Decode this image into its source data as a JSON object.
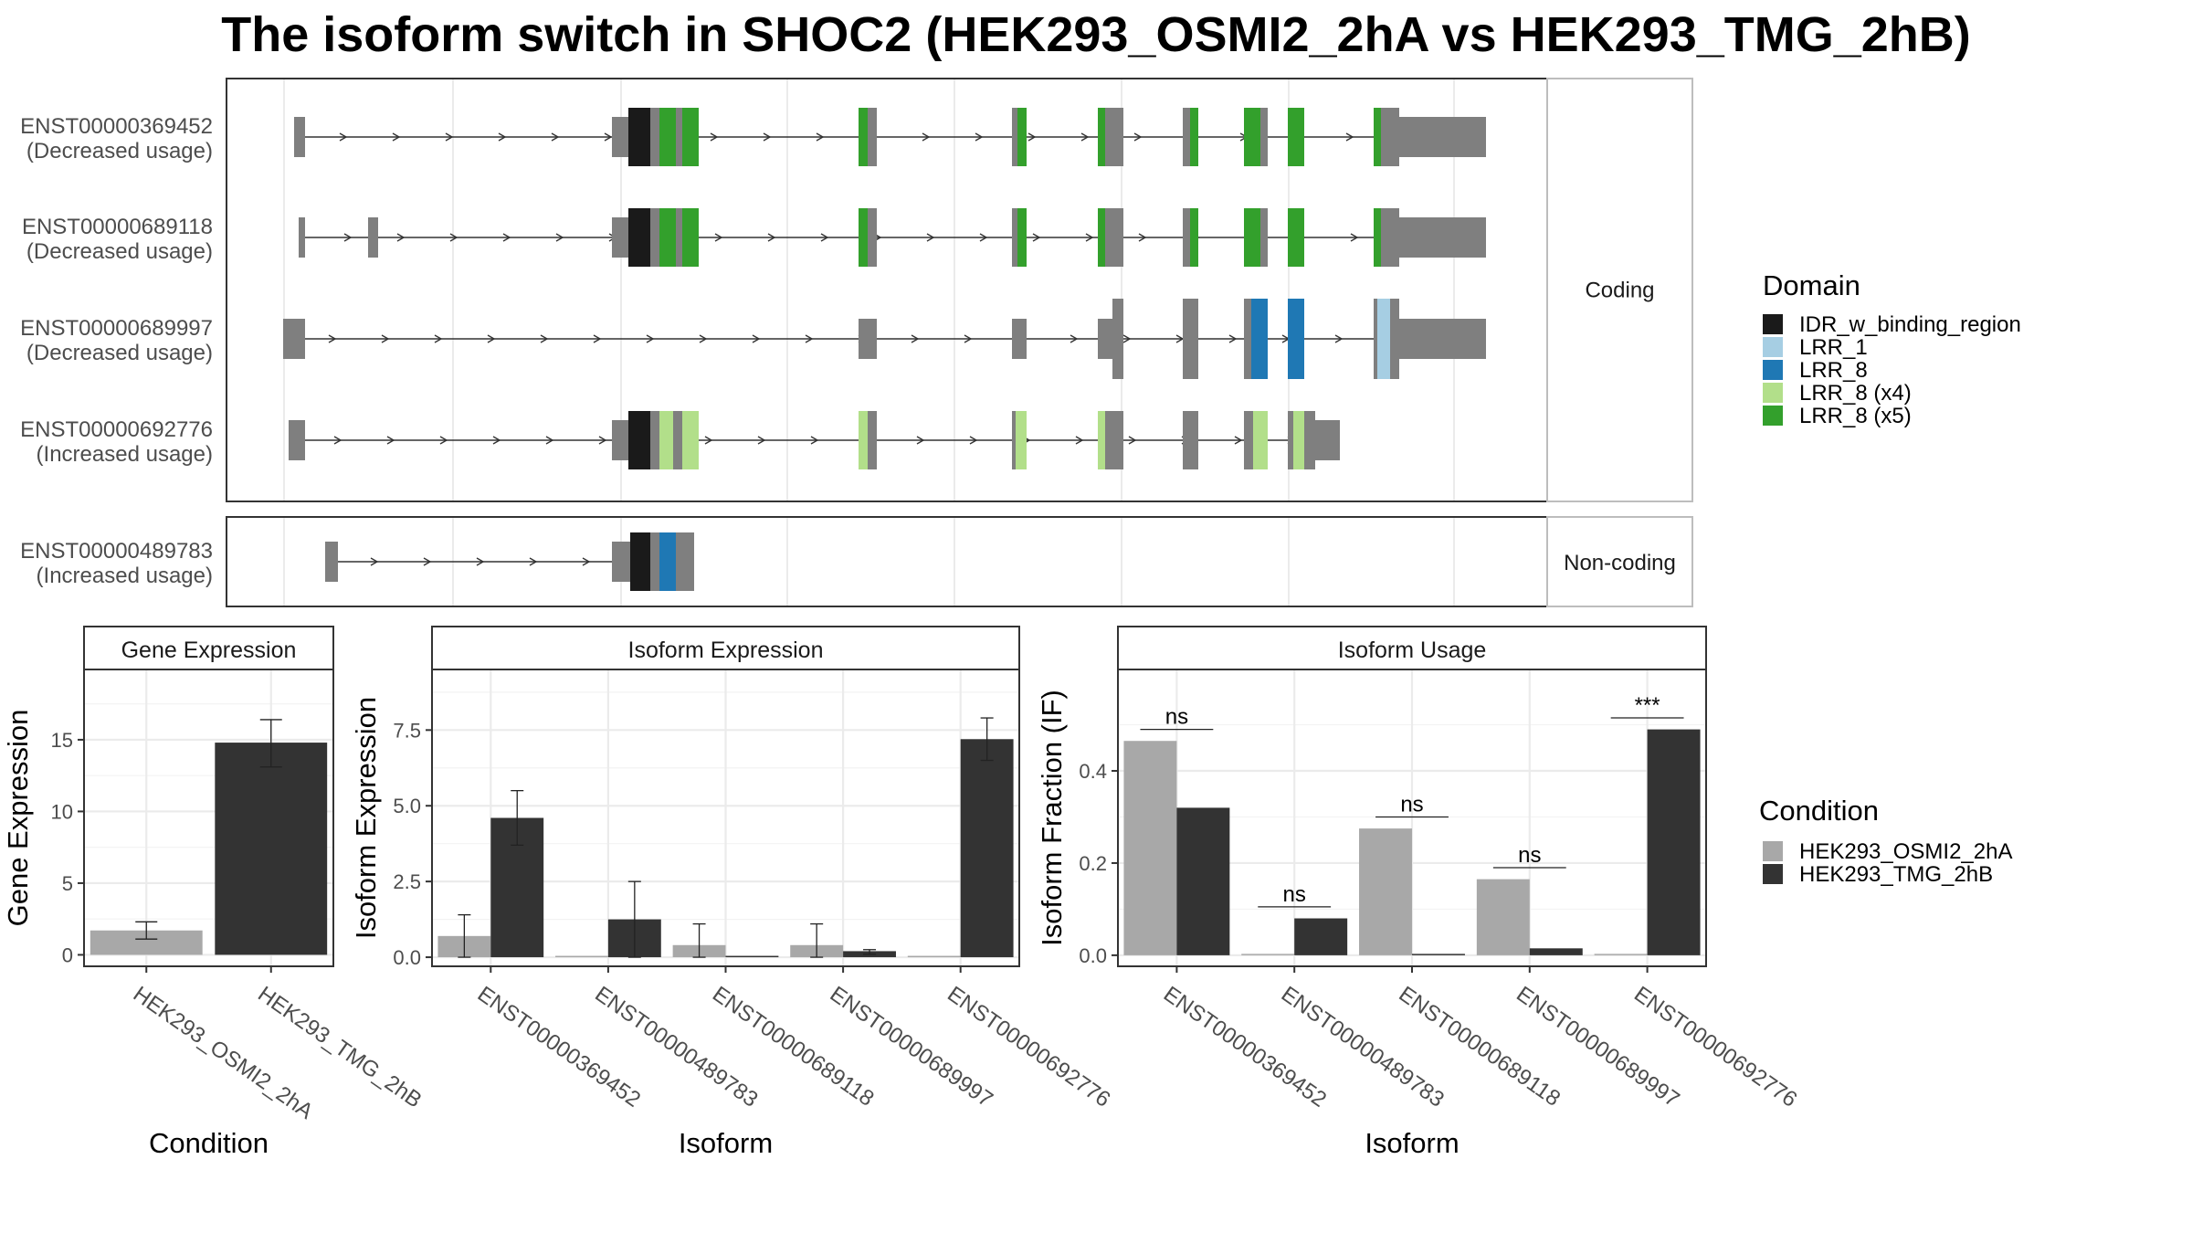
{
  "figure": {
    "title": "The isoform switch in SHOC2 (HEK293_OSMI2_2hA vs HEK293_TMG_2hB)"
  },
  "colors": {
    "domain_IDR_w_binding_region": "#1a1a1a",
    "domain_LRR_1": "#a6cee3",
    "domain_LRR_8": "#1f78b4",
    "domain_LRR_8_x4": "#b2df8a",
    "domain_LRR_8_x5": "#33a02c",
    "exon": "#7f7f7f",
    "cond_A": "#a8a8a8",
    "cond_B": "#333333"
  },
  "legend_domain": {
    "title": "Domain",
    "items": [
      "IDR_w_binding_region",
      "LRR_1",
      "LRR_8",
      "LRR_8 (x4)",
      "LRR_8 (x5)"
    ]
  },
  "legend_condition": {
    "title": "Condition",
    "items": [
      "HEK293_OSMI2_2hA",
      "HEK293_TMG_2hB"
    ]
  },
  "transcripts": {
    "coding_strip": "Coding",
    "noncoding_strip": "Non-coding",
    "coding": [
      {
        "id": "ENST00000369452",
        "note": "(Decreased usage)"
      },
      {
        "id": "ENST00000689118",
        "note": "(Decreased usage)"
      },
      {
        "id": "ENST00000689997",
        "note": "(Decreased usage)"
      },
      {
        "id": "ENST00000692776",
        "note": "(Increased usage)"
      }
    ],
    "noncoding": [
      {
        "id": "ENST00000489783",
        "note": "(Increased usage)"
      }
    ]
  },
  "chart_data": [
    {
      "type": "bar",
      "title": "Gene Expression",
      "xlabel": "Condition",
      "ylabel": "Gene Expression",
      "categories": [
        "HEK293_OSMI2_2hA",
        "HEK293_TMG_2hB"
      ],
      "values": [
        1.7,
        14.8
      ],
      "error_low": [
        1.1,
        13.1
      ],
      "error_high": [
        2.3,
        16.4
      ],
      "ylim": [
        -0.8,
        19.9
      ],
      "yticks": [
        0,
        5,
        10,
        15
      ],
      "ytick_labels": [
        "0",
        "5",
        "10",
        "15"
      ]
    },
    {
      "type": "bar",
      "title": "Isoform Expression",
      "xlabel": "Isoform",
      "ylabel": "Isoform Expression",
      "categories": [
        "ENST00000369452",
        "ENST00000489783",
        "ENST00000689118",
        "ENST00000689997",
        "ENST00000692776"
      ],
      "series": [
        {
          "name": "HEK293_OSMI2_2hA",
          "values": [
            0.7,
            0.0,
            0.4,
            0.4,
            0.0
          ],
          "error_low": [
            0.0,
            0.0,
            0.0,
            0.0,
            0.0
          ],
          "error_high": [
            1.4,
            0.0,
            1.1,
            1.1,
            0.0
          ]
        },
        {
          "name": "HEK293_TMG_2hB",
          "values": [
            4.6,
            1.25,
            0.0,
            0.2,
            7.2
          ],
          "error_low": [
            3.7,
            0.0,
            0.0,
            0.1,
            6.5
          ],
          "error_high": [
            5.5,
            2.5,
            0.0,
            0.25,
            7.9
          ]
        }
      ],
      "ylim": [
        -0.3,
        9.5
      ],
      "yticks": [
        0,
        2.5,
        5,
        7.5
      ],
      "ytick_labels": [
        "0.0",
        "2.5",
        "5.0",
        "7.5"
      ]
    },
    {
      "type": "bar",
      "title": "Isoform Usage",
      "xlabel": "Isoform",
      "ylabel": "Isoform Fraction (IF)",
      "categories": [
        "ENST00000369452",
        "ENST00000489783",
        "ENST00000689118",
        "ENST00000689997",
        "ENST00000692776"
      ],
      "series": [
        {
          "name": "HEK293_OSMI2_2hA",
          "values": [
            0.465,
            0.0,
            0.275,
            0.165,
            0.0
          ]
        },
        {
          "name": "HEK293_TMG_2hB",
          "values": [
            0.32,
            0.08,
            0.0,
            0.015,
            0.49
          ]
        }
      ],
      "significance": [
        "ns",
        "ns",
        "ns",
        "ns",
        "***"
      ],
      "significance_y": [
        0.49,
        0.105,
        0.3,
        0.19,
        0.515
      ],
      "ylim": [
        -0.024,
        0.62
      ],
      "yticks": [
        0,
        0.2,
        0.4
      ],
      "ytick_labels": [
        "0.0",
        "0.2",
        "0.4"
      ]
    }
  ]
}
